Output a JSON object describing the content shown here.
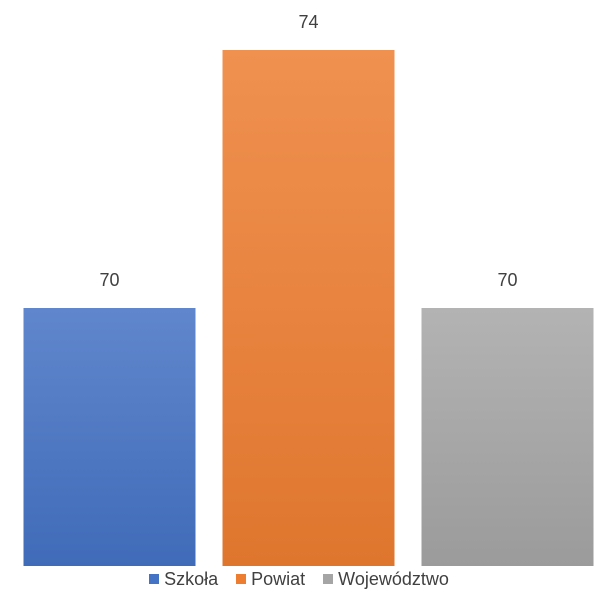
{
  "chart_data": {
    "type": "bar",
    "categories": [
      "Szkoła",
      "Powiat",
      "Województwo"
    ],
    "values": [
      70,
      74,
      70
    ],
    "colors": [
      "#4472C4",
      "#ED7D31",
      "#A5A5A5"
    ],
    "data_labels": [
      "70",
      "74",
      "70"
    ],
    "legend_position": "bottom",
    "grid": false,
    "axes_visible": false,
    "ylim": [
      66,
      74
    ]
  }
}
